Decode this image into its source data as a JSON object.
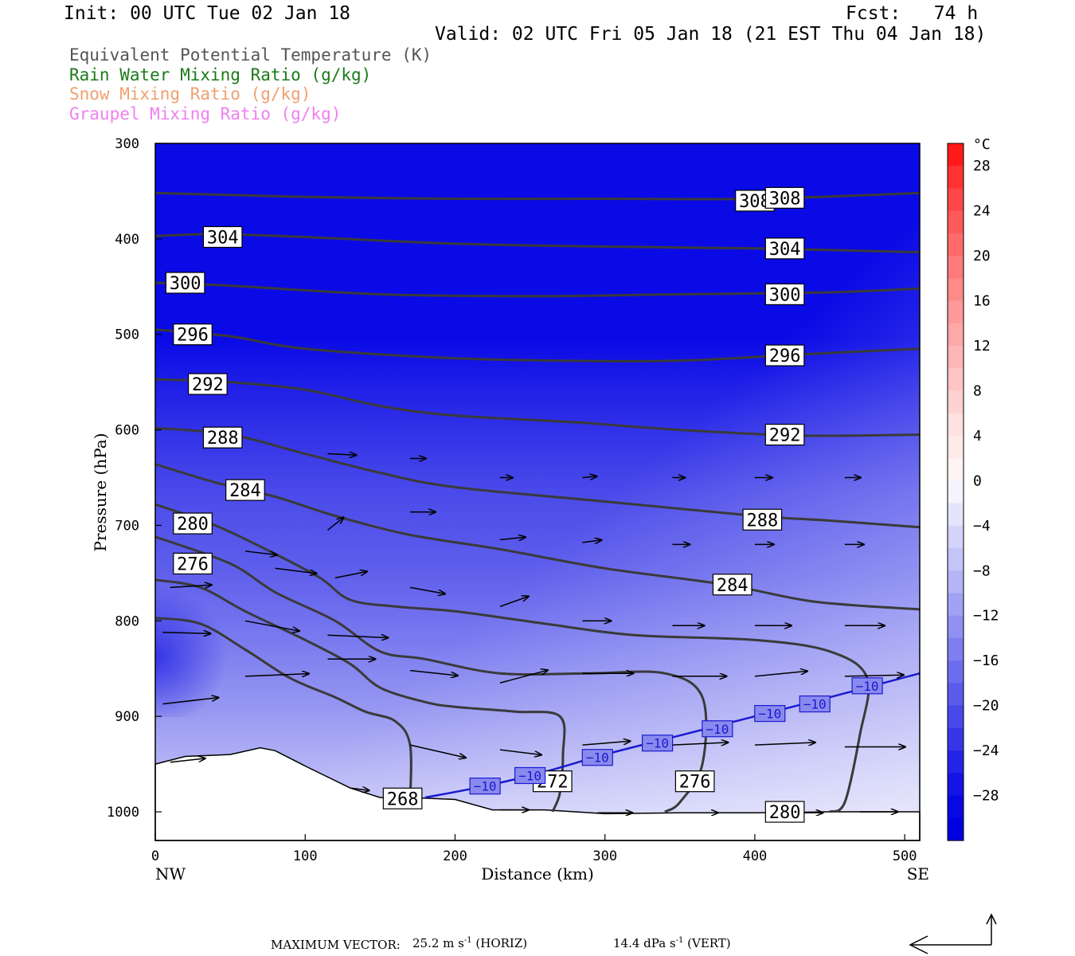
{
  "header": {
    "init": "Init: 00 UTC Tue 02 Jan 18",
    "fcst": "Fcst:   74 h",
    "valid": "Valid: 02 UTC Fri 05 Jan 18 (21 EST Thu 04 Jan 18)"
  },
  "legend": [
    {
      "text": "Equivalent Potential Temperature (K)",
      "color": "#555555"
    },
    {
      "text": "Rain Water Mixing Ratio (g/kg)",
      "color": "#1a7a1a"
    },
    {
      "text": "Snow Mixing Ratio (g/kg)",
      "color": "#f0a070"
    },
    {
      "text": "Graupel Mixing Ratio (g/kg)",
      "color": "#f080f0"
    }
  ],
  "footer": {
    "max_vector_label": "MAXIMUM VECTOR:",
    "horiz_value": "25.2 m s",
    "horiz_unit": "(HORIZ)",
    "vert_value": "14.4 dPa s",
    "vert_unit": "(VERT)",
    "exp": "-1"
  },
  "chart_data": {
    "type": "cross-section",
    "xlabel": "Distance (km)",
    "ylabel": "Pressure (hPa)",
    "x_ticks": [
      0,
      100,
      200,
      300,
      400,
      500
    ],
    "y_ticks": [
      300,
      400,
      500,
      600,
      700,
      800,
      900,
      1000
    ],
    "xlim": [
      0,
      510
    ],
    "ylim": [
      300,
      1030
    ],
    "left_end_label": "NW",
    "right_end_label": "SE",
    "colorbar": {
      "unit": "°C",
      "tick_labels": [
        "28",
        "24",
        "20",
        "16",
        "12",
        "8",
        "4",
        "0",
        "−4",
        "−8",
        "−12",
        "−16",
        "−20",
        "−24",
        "−28"
      ],
      "levels": [
        30,
        28,
        26,
        24,
        22,
        20,
        18,
        16,
        14,
        12,
        10,
        8,
        6,
        4,
        2,
        0,
        -2,
        -4,
        -6,
        -8,
        -10,
        -12,
        -14,
        -16,
        -18,
        -20,
        -22,
        -24,
        -26,
        -28,
        -30,
        -32
      ],
      "colors": [
        "#ff1a1a",
        "#ff3333",
        "#ff4848",
        "#ff5a5a",
        "#ff6a6a",
        "#ff7a7a",
        "#ff8a8a",
        "#ff9a9a",
        "#ffa8a8",
        "#ffb6b6",
        "#ffc4c4",
        "#ffd2d2",
        "#ffe0e0",
        "#ffeaea",
        "#fff4f4",
        "#f4f4ff",
        "#e4e4fc",
        "#d4d4fa",
        "#c4c4f8",
        "#b4b4f6",
        "#a2a2f4",
        "#9090f2",
        "#7e7ef0",
        "#6c6cee",
        "#5a5aec",
        "#4848ea",
        "#3636e8",
        "#2424e6",
        "#1414e4",
        "#0808e2",
        "#0000e0"
      ]
    },
    "theta_e_contours": [
      {
        "label": "308",
        "points": [
          [
            0,
            352
          ],
          [
            50,
            354
          ],
          [
            100,
            356
          ],
          [
            200,
            358
          ],
          [
            300,
            358
          ],
          [
            400,
            358
          ],
          [
            510,
            352
          ]
        ]
      },
      {
        "label": "304",
        "points": [
          [
            0,
            397
          ],
          [
            40,
            395
          ],
          [
            100,
            398
          ],
          [
            200,
            405
          ],
          [
            300,
            408
          ],
          [
            400,
            410
          ],
          [
            510,
            414
          ]
        ]
      },
      {
        "label": "300",
        "points": [
          [
            0,
            446
          ],
          [
            50,
            449
          ],
          [
            150,
            458
          ],
          [
            250,
            460
          ],
          [
            350,
            458
          ],
          [
            450,
            456
          ],
          [
            510,
            452
          ]
        ]
      },
      {
        "label": "296",
        "points": [
          [
            0,
            495
          ],
          [
            50,
            502
          ],
          [
            100,
            515
          ],
          [
            200,
            525
          ],
          [
            300,
            528
          ],
          [
            360,
            527
          ],
          [
            430,
            521
          ],
          [
            510,
            515
          ]
        ]
      },
      {
        "label": "292",
        "points": [
          [
            0,
            547
          ],
          [
            50,
            550
          ],
          [
            100,
            558
          ],
          [
            150,
            575
          ],
          [
            200,
            585
          ],
          [
            280,
            592
          ],
          [
            350,
            600
          ],
          [
            430,
            606
          ],
          [
            510,
            605
          ]
        ]
      },
      {
        "label": "288",
        "points": [
          [
            0,
            598
          ],
          [
            50,
            605
          ],
          [
            100,
            625
          ],
          [
            150,
            645
          ],
          [
            200,
            660
          ],
          [
            300,
            675
          ],
          [
            400,
            690
          ],
          [
            450,
            695
          ],
          [
            510,
            702
          ]
        ]
      },
      {
        "label": "284",
        "points": [
          [
            0,
            636
          ],
          [
            40,
            655
          ],
          [
            80,
            670
          ],
          [
            120,
            690
          ],
          [
            170,
            710
          ],
          [
            230,
            725
          ],
          [
            300,
            745
          ],
          [
            380,
            762
          ],
          [
            440,
            780
          ],
          [
            510,
            788
          ]
        ]
      },
      {
        "label": "280",
        "points": [
          [
            0,
            678
          ],
          [
            40,
            700
          ],
          [
            80,
            730
          ],
          [
            110,
            755
          ],
          [
            130,
            778
          ],
          [
            160,
            785
          ],
          [
            200,
            790
          ],
          [
            260,
            803
          ],
          [
            320,
            815
          ],
          [
            400,
            820
          ],
          [
            450,
            832
          ],
          [
            475,
            860
          ],
          [
            470,
            920
          ],
          [
            460,
            990
          ],
          [
            450,
            1000
          ]
        ]
      },
      {
        "label": "276",
        "points": [
          [
            0,
            712
          ],
          [
            50,
            740
          ],
          [
            80,
            770
          ],
          [
            120,
            800
          ],
          [
            150,
            832
          ],
          [
            180,
            840
          ],
          [
            230,
            855
          ],
          [
            290,
            855
          ],
          [
            340,
            855
          ],
          [
            365,
            880
          ],
          [
            365,
            950
          ],
          [
            350,
            990
          ],
          [
            340,
            1000
          ]
        ]
      },
      {
        "label": "272",
        "points": [
          [
            0,
            757
          ],
          [
            30,
            765
          ],
          [
            60,
            790
          ],
          [
            100,
            820
          ],
          [
            130,
            845
          ],
          [
            150,
            870
          ],
          [
            180,
            885
          ],
          [
            200,
            890
          ],
          [
            240,
            895
          ],
          [
            270,
            900
          ],
          [
            272,
            940
          ],
          [
            270,
            980
          ],
          [
            265,
            1000
          ]
        ]
      },
      {
        "label": "268",
        "points": [
          [
            0,
            797
          ],
          [
            30,
            803
          ],
          [
            60,
            830
          ],
          [
            90,
            860
          ],
          [
            120,
            880
          ],
          [
            140,
            895
          ],
          [
            160,
            905
          ],
          [
            170,
            930
          ],
          [
            170,
            990
          ]
        ]
      }
    ],
    "temperature_contour": {
      "label": "−10",
      "color": "#1a1ad0",
      "points": [
        [
          180,
          985
        ],
        [
          220,
          973
        ],
        [
          260,
          958
        ],
        [
          300,
          940
        ],
        [
          350,
          920
        ],
        [
          400,
          900
        ],
        [
          450,
          880
        ],
        [
          510,
          855
        ]
      ]
    },
    "terrain_profile": [
      [
        0,
        950
      ],
      [
        20,
        942
      ],
      [
        50,
        940
      ],
      [
        70,
        933
      ],
      [
        80,
        936
      ],
      [
        100,
        952
      ],
      [
        130,
        975
      ],
      [
        150,
        985
      ],
      [
        170,
        985
      ],
      [
        200,
        987
      ],
      [
        225,
        998
      ],
      [
        260,
        998
      ],
      [
        300,
        1002
      ],
      [
        350,
        1001
      ],
      [
        400,
        1001
      ],
      [
        450,
        1000
      ],
      [
        510,
        1000
      ]
    ],
    "wind_vectors": [
      {
        "x": 5,
        "p": 812,
        "u": 30,
        "w": 1
      },
      {
        "x": 5,
        "p": 887,
        "u": 35,
        "w": -5
      },
      {
        "x": 10,
        "p": 765,
        "u": 26,
        "w": -2
      },
      {
        "x": 10,
        "p": 948,
        "u": 22,
        "w": -3
      },
      {
        "x": 60,
        "p": 858,
        "u": 40,
        "w": -2
      },
      {
        "x": 60,
        "p": 800,
        "u": 34,
        "w": 8
      },
      {
        "x": 80,
        "p": 745,
        "u": 26,
        "w": 4
      },
      {
        "x": 60,
        "p": 727,
        "u": 20,
        "w": 3
      },
      {
        "x": 115,
        "p": 815,
        "u": 38,
        "w": 2
      },
      {
        "x": 115,
        "p": 840,
        "u": 30,
        "w": 0
      },
      {
        "x": 120,
        "p": 755,
        "u": 20,
        "w": -5
      },
      {
        "x": 115,
        "p": 705,
        "u": 10,
        "w": -10
      },
      {
        "x": 115,
        "p": 625,
        "u": 18,
        "w": 1
      },
      {
        "x": 170,
        "p": 852,
        "u": 30,
        "w": 4
      },
      {
        "x": 170,
        "p": 930,
        "u": 35,
        "w": 10
      },
      {
        "x": 170,
        "p": 765,
        "u": 22,
        "w": 5
      },
      {
        "x": 170,
        "p": 686,
        "u": 16,
        "w": 0
      },
      {
        "x": 170,
        "p": 630,
        "u": 10,
        "w": 0
      },
      {
        "x": 230,
        "p": 865,
        "u": 30,
        "w": -10
      },
      {
        "x": 230,
        "p": 935,
        "u": 26,
        "w": 4
      },
      {
        "x": 230,
        "p": 785,
        "u": 18,
        "w": -8
      },
      {
        "x": 230,
        "p": 715,
        "u": 16,
        "w": -2
      },
      {
        "x": 230,
        "p": 650,
        "u": 8,
        "w": 0
      },
      {
        "x": 285,
        "p": 855,
        "u": 32,
        "w": 0
      },
      {
        "x": 285,
        "p": 930,
        "u": 30,
        "w": -3
      },
      {
        "x": 285,
        "p": 800,
        "u": 18,
        "w": 0
      },
      {
        "x": 285,
        "p": 718,
        "u": 12,
        "w": -2
      },
      {
        "x": 285,
        "p": 650,
        "u": 9,
        "w": -1
      },
      {
        "x": 345,
        "p": 858,
        "u": 34,
        "w": 0
      },
      {
        "x": 345,
        "p": 930,
        "u": 35,
        "w": -2
      },
      {
        "x": 345,
        "p": 805,
        "u": 20,
        "w": 0
      },
      {
        "x": 345,
        "p": 720,
        "u": 11,
        "w": 0
      },
      {
        "x": 345,
        "p": 650,
        "u": 8,
        "w": 0
      },
      {
        "x": 400,
        "p": 858,
        "u": 33,
        "w": -4
      },
      {
        "x": 400,
        "p": 930,
        "u": 38,
        "w": -2
      },
      {
        "x": 400,
        "p": 805,
        "u": 23,
        "w": 0
      },
      {
        "x": 400,
        "p": 720,
        "u": 12,
        "w": 0
      },
      {
        "x": 400,
        "p": 650,
        "u": 11,
        "w": 0
      },
      {
        "x": 460,
        "p": 858,
        "u": 37,
        "w": -1
      },
      {
        "x": 460,
        "p": 932,
        "u": 38,
        "w": 0
      },
      {
        "x": 460,
        "p": 805,
        "u": 25,
        "w": 0
      },
      {
        "x": 460,
        "p": 720,
        "u": 12,
        "w": 0
      },
      {
        "x": 460,
        "p": 650,
        "u": 10,
        "w": 0
      },
      {
        "x": 230,
        "p": 998,
        "u": 18,
        "w": 0
      },
      {
        "x": 295,
        "p": 1001,
        "u": 22,
        "w": 0
      },
      {
        "x": 350,
        "p": 1001,
        "u": 24,
        "w": 0
      },
      {
        "x": 420,
        "p": 1001,
        "u": 24,
        "w": 0
      },
      {
        "x": 470,
        "p": 1000,
        "u": 24,
        "w": 0
      },
      {
        "x": 130,
        "p": 975,
        "u": 12,
        "w": 2
      }
    ]
  }
}
